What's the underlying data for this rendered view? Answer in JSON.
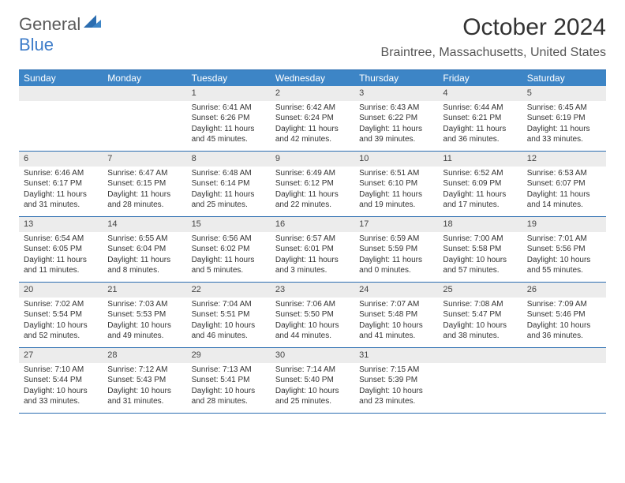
{
  "logo": {
    "general": "General",
    "blue": "Blue"
  },
  "title": "October 2024",
  "location": "Braintree, Massachusetts, United States",
  "colors": {
    "header_bg": "#3d85c6",
    "header_text": "#ffffff",
    "border": "#2b6db0",
    "daynum_bg": "#ececec",
    "logo_blue": "#3d7cc9",
    "logo_gray": "#5a5a5a"
  },
  "typography": {
    "title_fontsize": 30,
    "location_fontsize": 16,
    "dow_fontsize": 12,
    "cell_fontsize": 10
  },
  "days_of_week": [
    "Sunday",
    "Monday",
    "Tuesday",
    "Wednesday",
    "Thursday",
    "Friday",
    "Saturday"
  ],
  "weeks": [
    [
      null,
      null,
      {
        "n": "1",
        "sunrise": "6:41 AM",
        "sunset": "6:26 PM",
        "daylight": "11 hours and 45 minutes."
      },
      {
        "n": "2",
        "sunrise": "6:42 AM",
        "sunset": "6:24 PM",
        "daylight": "11 hours and 42 minutes."
      },
      {
        "n": "3",
        "sunrise": "6:43 AM",
        "sunset": "6:22 PM",
        "daylight": "11 hours and 39 minutes."
      },
      {
        "n": "4",
        "sunrise": "6:44 AM",
        "sunset": "6:21 PM",
        "daylight": "11 hours and 36 minutes."
      },
      {
        "n": "5",
        "sunrise": "6:45 AM",
        "sunset": "6:19 PM",
        "daylight": "11 hours and 33 minutes."
      }
    ],
    [
      {
        "n": "6",
        "sunrise": "6:46 AM",
        "sunset": "6:17 PM",
        "daylight": "11 hours and 31 minutes."
      },
      {
        "n": "7",
        "sunrise": "6:47 AM",
        "sunset": "6:15 PM",
        "daylight": "11 hours and 28 minutes."
      },
      {
        "n": "8",
        "sunrise": "6:48 AM",
        "sunset": "6:14 PM",
        "daylight": "11 hours and 25 minutes."
      },
      {
        "n": "9",
        "sunrise": "6:49 AM",
        "sunset": "6:12 PM",
        "daylight": "11 hours and 22 minutes."
      },
      {
        "n": "10",
        "sunrise": "6:51 AM",
        "sunset": "6:10 PM",
        "daylight": "11 hours and 19 minutes."
      },
      {
        "n": "11",
        "sunrise": "6:52 AM",
        "sunset": "6:09 PM",
        "daylight": "11 hours and 17 minutes."
      },
      {
        "n": "12",
        "sunrise": "6:53 AM",
        "sunset": "6:07 PM",
        "daylight": "11 hours and 14 minutes."
      }
    ],
    [
      {
        "n": "13",
        "sunrise": "6:54 AM",
        "sunset": "6:05 PM",
        "daylight": "11 hours and 11 minutes."
      },
      {
        "n": "14",
        "sunrise": "6:55 AM",
        "sunset": "6:04 PM",
        "daylight": "11 hours and 8 minutes."
      },
      {
        "n": "15",
        "sunrise": "6:56 AM",
        "sunset": "6:02 PM",
        "daylight": "11 hours and 5 minutes."
      },
      {
        "n": "16",
        "sunrise": "6:57 AM",
        "sunset": "6:01 PM",
        "daylight": "11 hours and 3 minutes."
      },
      {
        "n": "17",
        "sunrise": "6:59 AM",
        "sunset": "5:59 PM",
        "daylight": "11 hours and 0 minutes."
      },
      {
        "n": "18",
        "sunrise": "7:00 AM",
        "sunset": "5:58 PM",
        "daylight": "10 hours and 57 minutes."
      },
      {
        "n": "19",
        "sunrise": "7:01 AM",
        "sunset": "5:56 PM",
        "daylight": "10 hours and 55 minutes."
      }
    ],
    [
      {
        "n": "20",
        "sunrise": "7:02 AM",
        "sunset": "5:54 PM",
        "daylight": "10 hours and 52 minutes."
      },
      {
        "n": "21",
        "sunrise": "7:03 AM",
        "sunset": "5:53 PM",
        "daylight": "10 hours and 49 minutes."
      },
      {
        "n": "22",
        "sunrise": "7:04 AM",
        "sunset": "5:51 PM",
        "daylight": "10 hours and 46 minutes."
      },
      {
        "n": "23",
        "sunrise": "7:06 AM",
        "sunset": "5:50 PM",
        "daylight": "10 hours and 44 minutes."
      },
      {
        "n": "24",
        "sunrise": "7:07 AM",
        "sunset": "5:48 PM",
        "daylight": "10 hours and 41 minutes."
      },
      {
        "n": "25",
        "sunrise": "7:08 AM",
        "sunset": "5:47 PM",
        "daylight": "10 hours and 38 minutes."
      },
      {
        "n": "26",
        "sunrise": "7:09 AM",
        "sunset": "5:46 PM",
        "daylight": "10 hours and 36 minutes."
      }
    ],
    [
      {
        "n": "27",
        "sunrise": "7:10 AM",
        "sunset": "5:44 PM",
        "daylight": "10 hours and 33 minutes."
      },
      {
        "n": "28",
        "sunrise": "7:12 AM",
        "sunset": "5:43 PM",
        "daylight": "10 hours and 31 minutes."
      },
      {
        "n": "29",
        "sunrise": "7:13 AM",
        "sunset": "5:41 PM",
        "daylight": "10 hours and 28 minutes."
      },
      {
        "n": "30",
        "sunrise": "7:14 AM",
        "sunset": "5:40 PM",
        "daylight": "10 hours and 25 minutes."
      },
      {
        "n": "31",
        "sunrise": "7:15 AM",
        "sunset": "5:39 PM",
        "daylight": "10 hours and 23 minutes."
      },
      null,
      null
    ]
  ],
  "labels": {
    "sunrise": "Sunrise:",
    "sunset": "Sunset:",
    "daylight": "Daylight:"
  }
}
